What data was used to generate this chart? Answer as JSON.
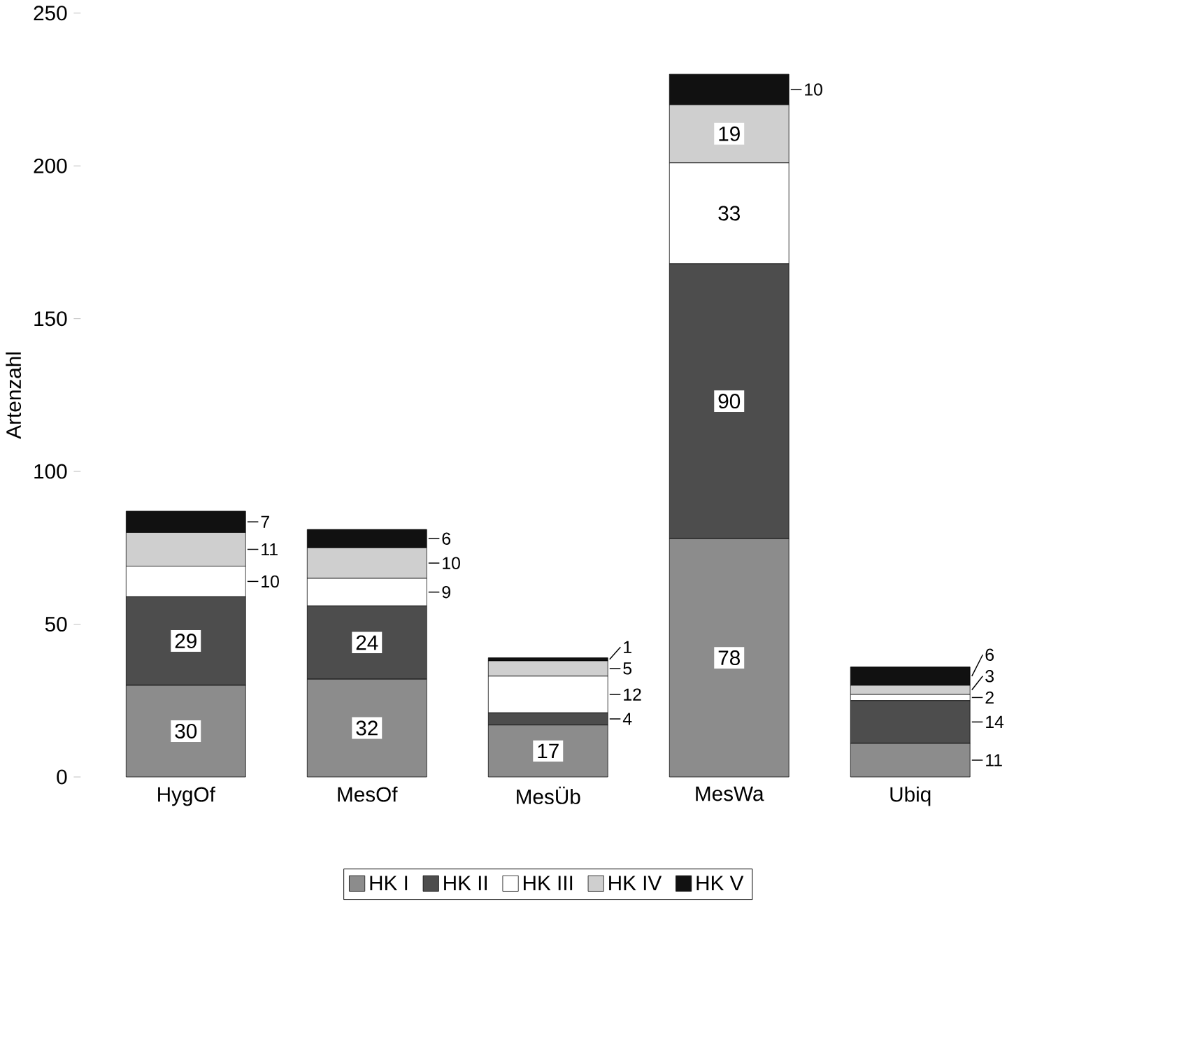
{
  "chart_data": {
    "type": "bar",
    "stacked": true,
    "ylabel": "Artenzahl",
    "categories": [
      "HygOf",
      "MesOf",
      "MesÜb",
      "MesWa",
      "Ubiq"
    ],
    "series": [
      {
        "name": "HK I",
        "color": "#8c8c8c",
        "values": [
          30,
          32,
          17,
          78,
          11
        ]
      },
      {
        "name": "HK II",
        "color": "#4d4d4d",
        "values": [
          29,
          24,
          4,
          90,
          14
        ]
      },
      {
        "name": "HK III",
        "color": "#ffffff",
        "values": [
          10,
          9,
          12,
          33,
          2
        ]
      },
      {
        "name": "HK IV",
        "color": "#cfcfcf",
        "values": [
          11,
          10,
          5,
          19,
          3
        ]
      },
      {
        "name": "HK V",
        "color": "#111111",
        "values": [
          7,
          6,
          1,
          10,
          6
        ]
      }
    ],
    "ylim": [
      0,
      250
    ],
    "yticks": [
      0,
      50,
      100,
      150,
      200,
      250
    ],
    "data_labels": true,
    "legend": "bottom"
  }
}
